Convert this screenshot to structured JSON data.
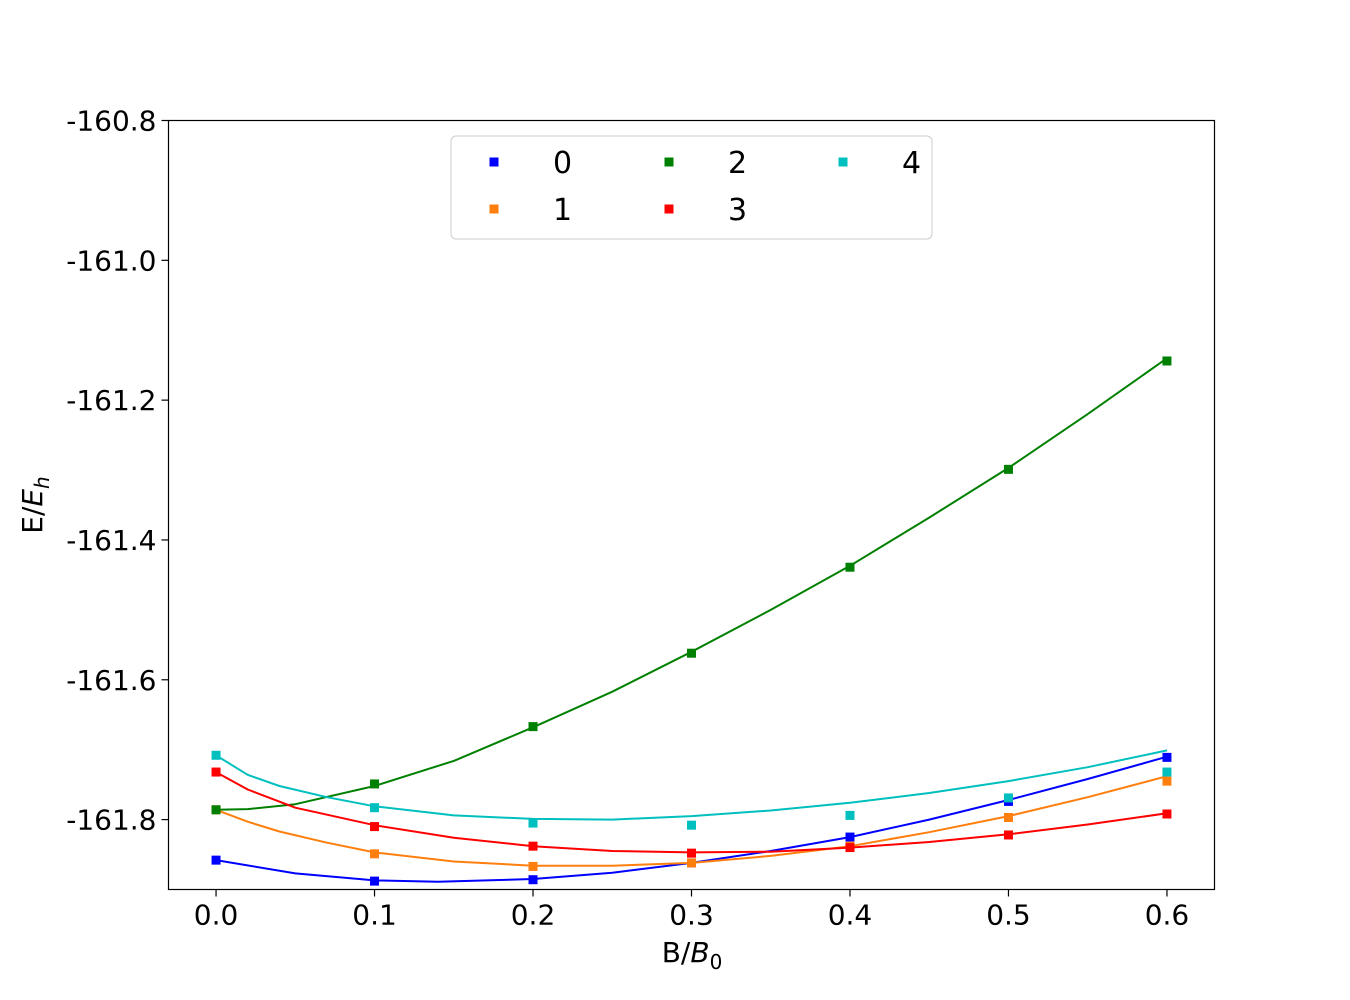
{
  "chart_data": {
    "type": "line",
    "xlabel": "B/B0",
    "ylabel": "E/Eh",
    "xlim": [
      -0.03,
      0.63
    ],
    "ylim": [
      -161.9,
      -160.8
    ],
    "xticks": [
      "0.0",
      "0.1",
      "0.2",
      "0.3",
      "0.4",
      "0.5",
      "0.6"
    ],
    "yticks": [
      "-160.8",
      "-161.0",
      "-161.2",
      "-161.4",
      "-161.6",
      "-161.8"
    ],
    "grid": false,
    "legend_position": "top-center",
    "markers": "square",
    "x": [
      0.0,
      0.1,
      0.2,
      0.3,
      0.4,
      0.5,
      0.6
    ],
    "series": [
      {
        "name": "0",
        "color": "#0000ff",
        "points": [
          -161.858,
          -161.888,
          -161.886,
          -161.862,
          -161.825,
          -161.774,
          -161.711
        ],
        "fit": [
          [
            0.0,
            -161.858
          ],
          [
            0.05,
            -161.877
          ],
          [
            0.1,
            -161.887
          ],
          [
            0.14,
            -161.889
          ],
          [
            0.2,
            -161.885
          ],
          [
            0.25,
            -161.876
          ],
          [
            0.3,
            -161.862
          ],
          [
            0.35,
            -161.845
          ],
          [
            0.4,
            -161.825
          ],
          [
            0.45,
            -161.8
          ],
          [
            0.5,
            -161.772
          ],
          [
            0.55,
            -161.742
          ],
          [
            0.6,
            -161.71
          ]
        ]
      },
      {
        "name": "1",
        "color": "#ff7f0e",
        "points": [
          -161.786,
          -161.849,
          -161.867,
          -161.862,
          -161.838,
          -161.797,
          -161.745
        ],
        "fit": [
          [
            0.0,
            -161.786
          ],
          [
            0.02,
            -161.803
          ],
          [
            0.04,
            -161.817
          ],
          [
            0.07,
            -161.833
          ],
          [
            0.1,
            -161.847
          ],
          [
            0.15,
            -161.86
          ],
          [
            0.2,
            -161.866
          ],
          [
            0.25,
            -161.866
          ],
          [
            0.3,
            -161.862
          ],
          [
            0.35,
            -161.852
          ],
          [
            0.4,
            -161.838
          ],
          [
            0.45,
            -161.818
          ],
          [
            0.5,
            -161.795
          ],
          [
            0.55,
            -161.768
          ],
          [
            0.6,
            -161.738
          ]
        ]
      },
      {
        "name": "2",
        "color": "#008000",
        "points": [
          -161.786,
          -161.749,
          -161.667,
          -161.562,
          -161.439,
          -161.299,
          -161.144
        ],
        "fit": [
          [
            0.0,
            -161.786
          ],
          [
            0.02,
            -161.785
          ],
          [
            0.05,
            -161.778
          ],
          [
            0.1,
            -161.752
          ],
          [
            0.15,
            -161.716
          ],
          [
            0.2,
            -161.668
          ],
          [
            0.25,
            -161.617
          ],
          [
            0.3,
            -161.56
          ],
          [
            0.35,
            -161.5
          ],
          [
            0.4,
            -161.437
          ],
          [
            0.45,
            -161.368
          ],
          [
            0.5,
            -161.297
          ],
          [
            0.55,
            -161.22
          ],
          [
            0.6,
            -161.14
          ]
        ]
      },
      {
        "name": "3",
        "color": "#ff0000",
        "points": [
          -161.732,
          -161.81,
          -161.838,
          -161.848,
          -161.84,
          -161.822,
          -161.792
        ],
        "fit": [
          [
            0.0,
            -161.732
          ],
          [
            0.02,
            -161.757
          ],
          [
            0.05,
            -161.783
          ],
          [
            0.1,
            -161.808
          ],
          [
            0.15,
            -161.826
          ],
          [
            0.2,
            -161.838
          ],
          [
            0.25,
            -161.845
          ],
          [
            0.3,
            -161.847
          ],
          [
            0.35,
            -161.846
          ],
          [
            0.4,
            -161.84
          ],
          [
            0.45,
            -161.832
          ],
          [
            0.5,
            -161.821
          ],
          [
            0.55,
            -161.807
          ],
          [
            0.6,
            -161.791
          ]
        ]
      },
      {
        "name": "4",
        "color": "#00bfbf",
        "points": [
          -161.708,
          -161.783,
          -161.805,
          -161.808,
          -161.794,
          -161.769,
          -161.732
        ],
        "fit": [
          [
            0.0,
            -161.708
          ],
          [
            0.02,
            -161.736
          ],
          [
            0.04,
            -161.752
          ],
          [
            0.07,
            -161.768
          ],
          [
            0.1,
            -161.781
          ],
          [
            0.15,
            -161.794
          ],
          [
            0.2,
            -161.799
          ],
          [
            0.25,
            -161.8
          ],
          [
            0.3,
            -161.795
          ],
          [
            0.35,
            -161.787
          ],
          [
            0.4,
            -161.776
          ],
          [
            0.45,
            -161.762
          ],
          [
            0.5,
            -161.745
          ],
          [
            0.55,
            -161.725
          ],
          [
            0.6,
            -161.701
          ]
        ]
      }
    ]
  }
}
